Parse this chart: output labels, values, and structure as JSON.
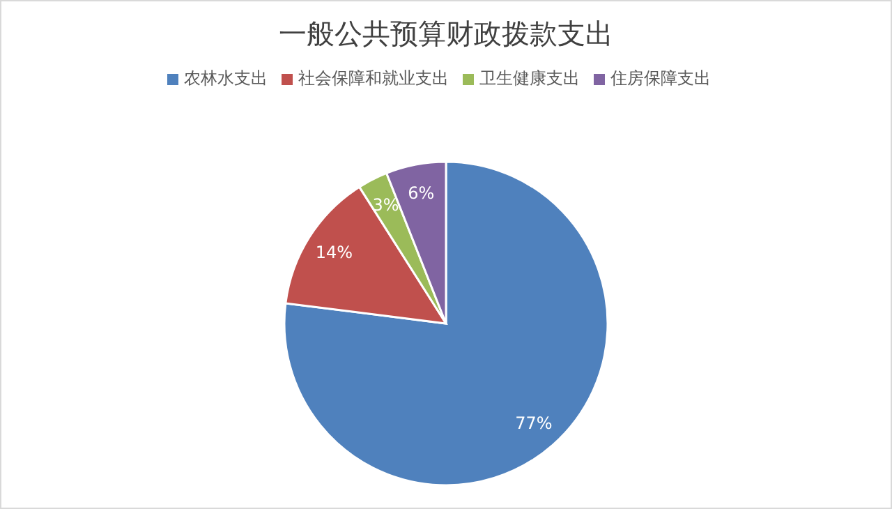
{
  "chart_data": {
    "type": "pie",
    "title": "一般公共预算财政拨款支出",
    "categories": [
      "农林水支出",
      "社会保障和就业支出",
      "卫生健康支出",
      "住房保障支出"
    ],
    "values": [
      77,
      14,
      3,
      6
    ],
    "colors": [
      "#4f81bd",
      "#c0504d",
      "#9bbb59",
      "#8064a2"
    ],
    "value_labels": [
      "77%",
      "14%",
      "3%",
      "6%"
    ],
    "legend": "top"
  }
}
